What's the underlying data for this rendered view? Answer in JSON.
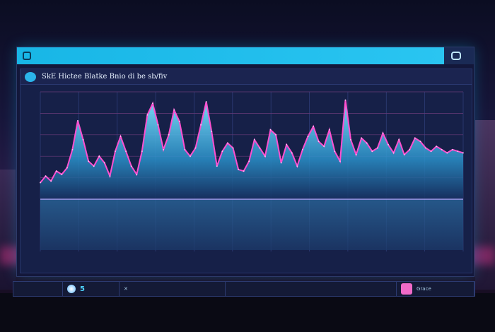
{
  "window": {
    "title": "",
    "topbar_right_label": "",
    "panel_title": "SkE Hictee Blatke Bnio di be sb/fiv"
  },
  "chart_data": {
    "type": "area",
    "title": "SkE Hictee Blatke Bnio di be sb/fiv",
    "x": [
      0,
      1,
      2,
      3,
      4,
      5,
      6,
      7,
      8,
      9,
      10,
      11,
      12,
      13,
      14,
      15,
      16,
      17,
      18,
      19,
      20,
      21,
      22,
      23,
      24,
      25,
      26,
      27,
      28,
      29,
      30,
      31,
      32,
      33,
      34,
      35,
      36,
      37,
      38,
      39,
      40,
      41,
      42,
      43,
      44,
      45,
      46,
      47,
      48,
      49,
      50,
      51,
      52,
      53,
      54,
      55,
      56,
      57,
      58,
      59,
      60,
      61,
      62,
      63,
      64,
      65,
      66,
      67,
      68,
      69,
      70,
      71,
      72,
      73,
      74,
      75,
      76,
      77,
      78,
      79
    ],
    "series": [
      {
        "values": [
          20,
          28,
          22,
          34,
          30,
          38,
          60,
          95,
          72,
          46,
          40,
          52,
          44,
          28,
          58,
          76,
          58,
          40,
          30,
          58,
          102,
          116,
          90,
          60,
          78,
          108,
          94,
          60,
          52,
          62,
          90,
          118,
          82,
          40,
          58,
          68,
          62,
          36,
          34,
          46,
          72,
          62,
          52,
          84,
          78,
          44,
          66,
          56,
          40,
          60,
          76,
          88,
          70,
          64,
          84,
          58,
          46,
          120,
          72,
          54,
          74,
          68,
          58,
          62,
          80,
          66,
          56,
          72,
          54,
          60,
          74,
          70,
          62,
          58,
          64,
          60,
          56,
          60,
          58,
          56
        ]
      }
    ],
    "grid": true
  },
  "bottombar": {
    "left_label": "",
    "number": "5",
    "right_label": "Grace"
  }
}
